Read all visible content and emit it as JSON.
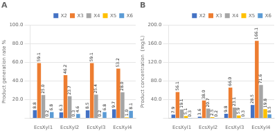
{
  "chart_data": [
    {
      "type": "bar",
      "title": "A",
      "ylabel": "Product generation rate %",
      "categories": [
        "EcsXyl1",
        "EcsXyl2",
        "EcsXyl3",
        "EcsXyl4"
      ],
      "series": [
        {
          "name": "X2",
          "color": "#4472C4",
          "values": [
            8.8,
            6.3,
            8.5,
            9.7
          ],
          "value_labels": [
            "8.8",
            "6.3",
            "8.5",
            "9.7"
          ]
        },
        {
          "name": "X3",
          "color": "#ED7D31",
          "values": [
            59.1,
            46.2,
            59.1,
            53.2
          ],
          "value_labels": [
            "59.1",
            "46.2",
            "59.1",
            "53.2"
          ]
        },
        {
          "name": "X4",
          "color": "#A5A5A5",
          "values": [
            25.0,
            23.7,
            25.4,
            28.0
          ],
          "value_labels": [
            "25.0",
            "23.7",
            "25.4",
            "28.0"
          ]
        },
        {
          "name": "X5",
          "color": "#FFC000",
          "values": [
            0.2,
            0.3,
            0.2,
            1.0
          ],
          "value_labels": [
            "0.2",
            "0.3",
            "0.2",
            "1.0"
          ]
        },
        {
          "name": "X6",
          "color": "#5B9BD5",
          "values": [
            6.8,
            4.6,
            6.8,
            8.1
          ],
          "value_labels": [
            "6.8",
            "4.6",
            "6.8",
            "8.1"
          ]
        }
      ],
      "ylim": [
        0,
        100
      ],
      "yticks": [
        {
          "value": 0,
          "label": ""
        },
        {
          "value": 20,
          "label": "20.0"
        },
        {
          "value": 40,
          "label": "40.0"
        },
        {
          "value": 60,
          "label": "60.0"
        },
        {
          "value": 80,
          "label": "80.0"
        },
        {
          "value": 100,
          "label": "100.0"
        }
      ],
      "grid": true,
      "legend": "upper right",
      "data_labels": true
    },
    {
      "type": "bar",
      "title": "B",
      "ylabel": "Product concentration  (mg/L)",
      "categories": [
        "EcsXyl1",
        "EcsXyl2",
        "EcsXyl3",
        "EcsXyl4"
      ],
      "series": [
        {
          "name": "X2",
          "color": "#4472C4",
          "values": [
            7.9,
            3.6,
            9.8,
            28.5
          ],
          "value_labels": [
            "7.9",
            "3.6",
            "9.8",
            "28.5"
          ]
        },
        {
          "name": "X3",
          "color": "#ED7D31",
          "values": [
            56.1,
            38.0,
            66.0,
            166.1
          ],
          "value_labels": [
            "56.1",
            "38.0",
            "66.0",
            "166.1"
          ]
        },
        {
          "name": "X4",
          "color": "#A5A5A5",
          "values": [
            19.1,
            20.7,
            23.1,
            71.6
          ],
          "value_labels": [
            "19.1",
            "20.7",
            "23.1",
            "71.6"
          ]
        },
        {
          "name": "X5",
          "color": "#FFC000",
          "values": [
            5.1,
            2.5,
            5.9,
            19.8
          ],
          "value_labels": [
            "5.1",
            "2.5",
            "5.9",
            "19.8"
          ]
        },
        {
          "name": "X6",
          "color": "#5B9BD5",
          "values": [
            0.3,
            0.2,
            0.3,
            8.5
          ],
          "value_labels": [
            "0.3",
            "0.2",
            "0.3",
            "8.5"
          ]
        }
      ],
      "ylim": [
        0,
        200
      ],
      "yticks": [
        {
          "value": 0,
          "label": ""
        },
        {
          "value": 40,
          "label": "40.0"
        },
        {
          "value": 80,
          "label": "80.0"
        },
        {
          "value": 120,
          "label": "120.0"
        },
        {
          "value": 160,
          "label": "160.0"
        },
        {
          "value": 200,
          "label": "200.0"
        }
      ],
      "grid": true,
      "legend": "upper right",
      "data_labels": true
    }
  ]
}
